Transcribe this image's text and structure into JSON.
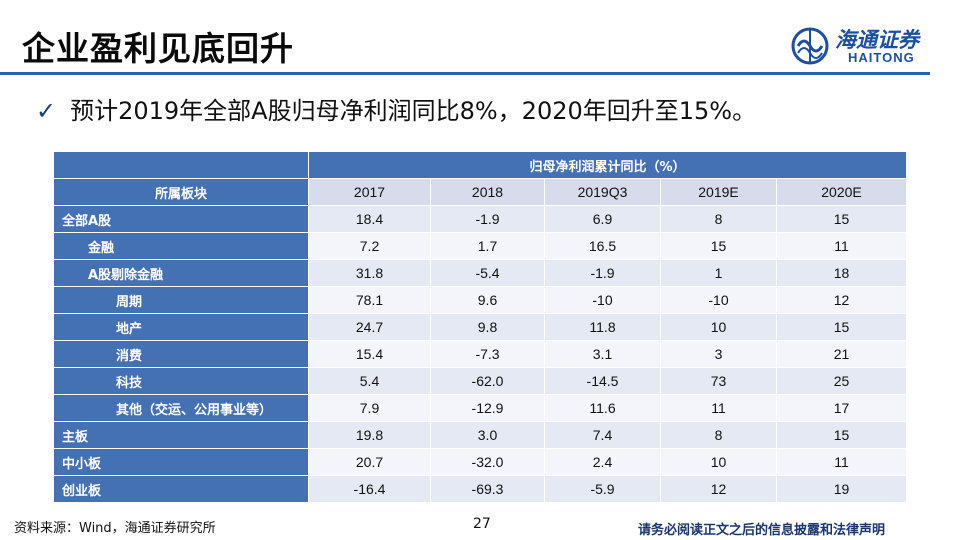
{
  "slide": {
    "title": "企业盈利见底回升",
    "bullet": "预计2019年全部A股归母净利润同比8%，2020年回升至15%。",
    "footer_source": "资料来源：Wind，海通证券研究所",
    "page_number": "27",
    "disclaimer": "请务必阅读正文之后的信息披露和法律声明"
  },
  "logo": {
    "cn": "海通证券",
    "en": "HAITONG",
    "color": "#1d4fa0"
  },
  "table": {
    "group_header": "归母净利润累计同比（%）",
    "row_header": "所属板块",
    "columns": [
      "2017",
      "2018",
      "2019Q3",
      "2019E",
      "2020E"
    ],
    "rows": [
      {
        "label": "全部A股",
        "indent": 0,
        "values": [
          "18.4",
          "-1.9",
          "6.9",
          "8",
          "15"
        ]
      },
      {
        "label": "金融",
        "indent": 1,
        "values": [
          "7.2",
          "1.7",
          "16.5",
          "15",
          "11"
        ]
      },
      {
        "label": "A股剔除金融",
        "indent": 1,
        "values": [
          "31.8",
          "-5.4",
          "-1.9",
          "1",
          "18"
        ]
      },
      {
        "label": "周期",
        "indent": 2,
        "values": [
          "78.1",
          "9.6",
          "-10",
          "-10",
          "12"
        ]
      },
      {
        "label": "地产",
        "indent": 2,
        "values": [
          "24.7",
          "9.8",
          "11.8",
          "10",
          "15"
        ]
      },
      {
        "label": "消费",
        "indent": 2,
        "values": [
          "15.4",
          "-7.3",
          "3.1",
          "3",
          "21"
        ]
      },
      {
        "label": "科技",
        "indent": 2,
        "values": [
          "5.4",
          "-62.0",
          "-14.5",
          "73",
          "25"
        ]
      },
      {
        "label": "其他（交运、公用事业等）",
        "indent": 2,
        "values": [
          "7.9",
          "-12.9",
          "11.6",
          "11",
          "17"
        ]
      },
      {
        "label": "主板",
        "indent": 0,
        "values": [
          "19.8",
          "3.0",
          "7.4",
          "8",
          "15"
        ]
      },
      {
        "label": "中小板",
        "indent": 0,
        "values": [
          "20.7",
          "-32.0",
          "2.4",
          "10",
          "11"
        ]
      },
      {
        "label": "创业板",
        "indent": 0,
        "values": [
          "-16.4",
          "-69.3",
          "-5.9",
          "12",
          "19"
        ]
      }
    ]
  },
  "colors": {
    "header_blue": "#4471b4",
    "rule_blue": "#2e5fa8",
    "row_light": "#f3f5fa",
    "row_mid": "#e5e9f3"
  }
}
